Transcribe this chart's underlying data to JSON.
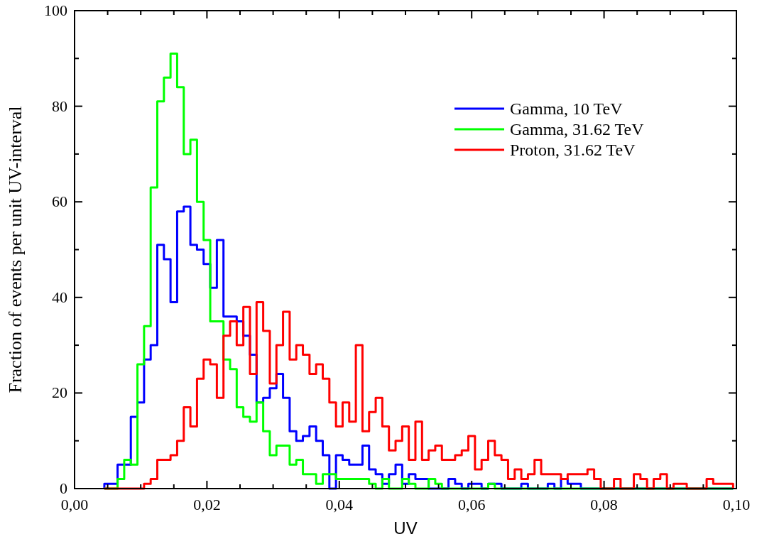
{
  "chart_data": {
    "type": "histogram",
    "xlabel": "UV",
    "ylabel": "Fraction of events per unit UV-interval",
    "bins": [
      0.0045,
      0.0055,
      0.0065,
      0.0075,
      0.0085,
      0.0095,
      0.0105,
      0.0115,
      0.0125,
      0.0135,
      0.0145,
      0.0155,
      0.0165,
      0.0175,
      0.0185,
      0.0195,
      0.0205,
      0.0215,
      0.0225,
      0.0235,
      0.0245,
      0.0255,
      0.0265,
      0.0275,
      0.0285,
      0.0295,
      0.0305,
      0.0315,
      0.0325,
      0.0335,
      0.0345,
      0.0355,
      0.0365,
      0.0375,
      0.0385,
      0.0395,
      0.0405,
      0.0415,
      0.0425,
      0.0435,
      0.0445,
      0.0455,
      0.0465,
      0.0475,
      0.0485,
      0.0495,
      0.0505,
      0.0515,
      0.0525,
      0.0535,
      0.0545,
      0.0555,
      0.0565,
      0.0575,
      0.0585,
      0.0595,
      0.0605,
      0.0615,
      0.0625,
      0.0635,
      0.0645,
      0.0655,
      0.0665,
      0.0675,
      0.0685,
      0.0695,
      0.0705,
      0.0715,
      0.0725,
      0.0735,
      0.0745,
      0.0755,
      0.0765,
      0.0775,
      0.0785,
      0.0795,
      0.0805,
      0.0815,
      0.0825,
      0.0835,
      0.0845,
      0.0855,
      0.0865,
      0.0875,
      0.0885,
      0.0895,
      0.0905,
      0.0915,
      0.0925,
      0.0935,
      0.0945,
      0.0955,
      0.0965,
      0.0975,
      0.0985,
      0.0995
    ],
    "series": [
      {
        "name": "Gamma, 10 TeV",
        "color": "#0000ff",
        "values": [
          1,
          1,
          5,
          5,
          15,
          18,
          27,
          30,
          51,
          48,
          39,
          58,
          59,
          51,
          50,
          47,
          42,
          52,
          36,
          36,
          35,
          32,
          28,
          18,
          19,
          21,
          24,
          19,
          12,
          10,
          11,
          13,
          10,
          7,
          0,
          7,
          6,
          5,
          5,
          9,
          4,
          3,
          1,
          3,
          5,
          1,
          3,
          2,
          2,
          0,
          0,
          0,
          2,
          1,
          0,
          1,
          1,
          0,
          1,
          1,
          0,
          0,
          0,
          1,
          0,
          0,
          0,
          1,
          0,
          2,
          1,
          1,
          0,
          0,
          0,
          0,
          0,
          0,
          0,
          0,
          0,
          0,
          0,
          0,
          0,
          0,
          0,
          0,
          0,
          0,
          0,
          0,
          0,
          0,
          0
        ]
      },
      {
        "name": "Gamma, 31.62 TeV",
        "color": "#00ff00",
        "values": [
          0,
          0,
          2,
          6,
          5,
          26,
          34,
          63,
          81,
          86,
          91,
          84,
          70,
          73,
          60,
          52,
          35,
          35,
          27,
          25,
          17,
          15,
          14,
          18,
          12,
          7,
          9,
          9,
          5,
          6,
          3,
          3,
          1,
          3,
          3,
          2,
          2,
          2,
          2,
          2,
          1,
          0,
          2,
          0,
          0,
          2,
          1,
          0,
          0,
          2,
          1,
          0,
          0,
          0,
          0,
          0,
          0,
          0,
          1,
          0,
          0,
          0,
          0,
          0,
          0,
          0,
          0,
          0,
          0,
          0,
          0,
          0,
          0,
          0,
          0,
          0,
          0,
          0,
          0,
          0,
          0,
          0,
          0,
          0,
          0,
          0,
          0,
          0,
          0,
          0,
          0,
          0,
          0,
          0,
          0
        ]
      },
      {
        "name": "Proton, 31.62 TeV",
        "color": "#ff0000",
        "values": [
          0,
          0,
          0,
          0,
          0,
          0,
          1,
          2,
          6,
          6,
          7,
          10,
          17,
          13,
          23,
          27,
          26,
          19,
          32,
          35,
          30,
          38,
          24,
          39,
          33,
          22,
          30,
          37,
          27,
          30,
          28,
          24,
          26,
          23,
          18,
          13,
          18,
          14,
          30,
          12,
          16,
          19,
          13,
          8,
          10,
          13,
          6,
          14,
          6,
          8,
          9,
          6,
          6,
          7,
          8,
          11,
          4,
          6,
          10,
          7,
          6,
          2,
          4,
          2,
          3,
          6,
          3,
          3,
          3,
          2,
          3,
          3,
          3,
          4,
          2,
          0,
          0,
          2,
          0,
          0,
          3,
          2,
          0,
          2,
          3,
          0,
          1,
          1,
          0,
          0,
          0,
          2,
          1,
          1,
          1
        ]
      }
    ],
    "xlim": [
      0,
      0.1
    ],
    "xticks": [
      {
        "value": 0,
        "label": "0,00"
      },
      {
        "value": 0.005,
        "label": null
      },
      {
        "value": 0.02,
        "label": "0,02"
      },
      {
        "value": 0.01,
        "label": null
      },
      {
        "value": 0.015,
        "label": null
      },
      {
        "value": 0.025,
        "label": null
      },
      {
        "value": 0.04,
        "label": "0,04"
      },
      {
        "value": 0.03,
        "label": null
      },
      {
        "value": 0.035,
        "label": null
      },
      {
        "value": 0.045,
        "label": null
      },
      {
        "value": 0.06,
        "label": "0,06"
      },
      {
        "value": 0.05,
        "label": null
      },
      {
        "value": 0.055,
        "label": null
      },
      {
        "value": 0.065,
        "label": null
      },
      {
        "value": 0.08,
        "label": "0,08"
      },
      {
        "value": 0.07,
        "label": null
      },
      {
        "value": 0.075,
        "label": null
      },
      {
        "value": 0.085,
        "label": null
      },
      {
        "value": 0.1,
        "label": "0,10"
      },
      {
        "value": 0.09,
        "label": null
      },
      {
        "value": 0.095,
        "label": null
      }
    ],
    "ylim": [
      0,
      100
    ],
    "yticks": [
      0,
      {
        "value": 10,
        "label": null
      },
      20,
      {
        "value": 30,
        "label": null
      },
      40,
      {
        "value": 50,
        "label": null
      },
      60,
      {
        "value": 70,
        "label": null
      },
      80,
      {
        "value": 90,
        "label": null
      },
      100
    ],
    "legend": "top right",
    "grid": false
  }
}
